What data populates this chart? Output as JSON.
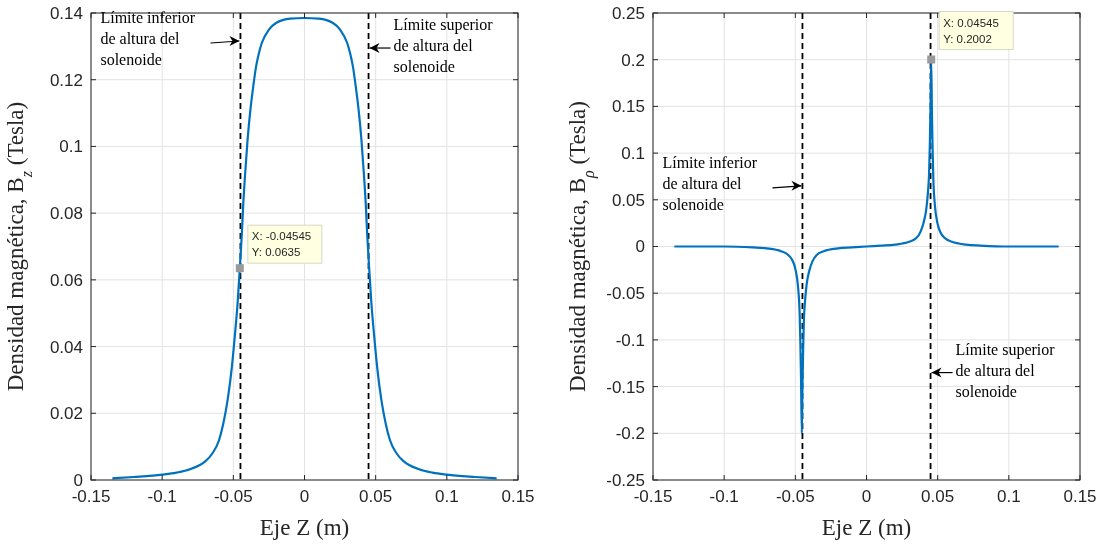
{
  "chart_data": [
    {
      "type": "line",
      "xlabel": "Eje Z (m)",
      "ylabel": "Densidad magnética, B$_{z}$ (Tesla)",
      "xlim": [
        -0.15,
        0.15
      ],
      "xticks": [
        -0.15,
        -0.1,
        -0.05,
        0,
        0.05,
        0.1,
        0.15
      ],
      "ylim": [
        0,
        0.14
      ],
      "yticks": [
        0,
        0.02,
        0.04,
        0.06,
        0.08,
        0.1,
        0.12,
        0.14
      ],
      "grid": true,
      "line_style": "solid",
      "series": [
        {
          "color": "#0072bd",
          "x": [
            -0.135,
            -0.12,
            -0.1,
            -0.09,
            -0.08,
            -0.07,
            -0.065,
            -0.06,
            -0.057,
            -0.054,
            -0.051,
            -0.049,
            -0.047,
            -0.04545,
            -0.044,
            -0.043,
            -0.042,
            -0.04,
            -0.038,
            -0.036,
            -0.034,
            -0.032,
            -0.03,
            -0.025,
            -0.02,
            -0.01,
            0,
            0.01,
            0.02,
            0.025,
            0.03,
            0.032,
            0.034,
            0.036,
            0.038,
            0.04,
            0.042,
            0.043,
            0.044,
            0.04545,
            0.047,
            0.049,
            0.051,
            0.054,
            0.057,
            0.06,
            0.065,
            0.07,
            0.08,
            0.09,
            0.1,
            0.12,
            0.135
          ],
          "values": [
            0.0005,
            0.0009,
            0.0016,
            0.0022,
            0.0033,
            0.0055,
            0.0078,
            0.012,
            0.017,
            0.024,
            0.034,
            0.043,
            0.053,
            0.0635,
            0.074,
            0.083,
            0.09,
            0.102,
            0.111,
            0.118,
            0.124,
            0.128,
            0.131,
            0.135,
            0.137,
            0.1383,
            0.1385,
            0.1383,
            0.137,
            0.135,
            0.131,
            0.128,
            0.124,
            0.118,
            0.111,
            0.102,
            0.09,
            0.083,
            0.074,
            0.0635,
            0.053,
            0.043,
            0.034,
            0.024,
            0.017,
            0.012,
            0.0078,
            0.0055,
            0.0033,
            0.0022,
            0.0016,
            0.0009,
            0.0005
          ]
        }
      ],
      "ref_lines": [
        {
          "axis": "x",
          "value": -0.045,
          "label": "Límite inferior de altura del solenoide",
          "color": "#000000",
          "line_style": "dashed"
        },
        {
          "axis": "x",
          "value": 0.045,
          "label": "Límite superior de altura del solenoide",
          "color": "#000000",
          "line_style": "dashed"
        }
      ],
      "annotations": [
        {
          "text": "X: -0.04545\nY: 0.0635",
          "x": -0.04545,
          "y": 0.0635
        }
      ]
    },
    {
      "type": "line",
      "xlabel": "Eje Z (m)",
      "ylabel": "Densidad magnética, B$_{ρ}$ (Tesla)",
      "xlim": [
        -0.15,
        0.15
      ],
      "xticks": [
        -0.15,
        -0.1,
        -0.05,
        0,
        0.05,
        0.1,
        0.15
      ],
      "ylim": [
        -0.25,
        0.25
      ],
      "yticks": [
        -0.25,
        -0.2,
        -0.15,
        -0.1,
        -0.05,
        0,
        0.05,
        0.1,
        0.15,
        0.2,
        0.25
      ],
      "grid": true,
      "line_style": "solid",
      "series": [
        {
          "color": "#0072bd",
          "x": [
            -0.135,
            -0.1,
            -0.08,
            -0.07,
            -0.06,
            -0.055,
            -0.052,
            -0.05,
            -0.048,
            -0.047,
            -0.0465,
            -0.046,
            -0.04545,
            -0.045,
            -0.0445,
            -0.044,
            -0.043,
            -0.042,
            -0.04,
            -0.038,
            -0.035,
            -0.03,
            -0.02,
            -0.01,
            0,
            0.01,
            0.02,
            0.03,
            0.035,
            0.038,
            0.04,
            0.042,
            0.043,
            0.044,
            0.0445,
            0.045,
            0.04545,
            0.046,
            0.0465,
            0.047,
            0.048,
            0.05,
            0.052,
            0.055,
            0.06,
            0.07,
            0.08,
            0.1,
            0.135
          ],
          "values": [
            0,
            0,
            -0.001,
            -0.002,
            -0.005,
            -0.009,
            -0.015,
            -0.024,
            -0.045,
            -0.07,
            -0.1,
            -0.14,
            -0.2,
            -0.15,
            -0.11,
            -0.08,
            -0.055,
            -0.04,
            -0.025,
            -0.016,
            -0.009,
            -0.005,
            -0.002,
            -0.001,
            0,
            0.001,
            0.002,
            0.005,
            0.009,
            0.016,
            0.025,
            0.04,
            0.055,
            0.08,
            0.11,
            0.15,
            0.2002,
            0.14,
            0.1,
            0.07,
            0.045,
            0.024,
            0.015,
            0.009,
            0.005,
            0.002,
            0.001,
            0,
            0
          ]
        }
      ],
      "ref_lines": [
        {
          "axis": "x",
          "value": -0.045,
          "label": "Límite inferior de altura del solenoide",
          "color": "#000000",
          "line_style": "dashed"
        },
        {
          "axis": "x",
          "value": 0.045,
          "label": "Límite superior de altura del solenoide",
          "color": "#000000",
          "line_style": "dashed"
        }
      ],
      "annotations": [
        {
          "text": "X: 0.04545\nY: 0.2002",
          "x": 0.04545,
          "y": 0.2002
        }
      ]
    }
  ]
}
